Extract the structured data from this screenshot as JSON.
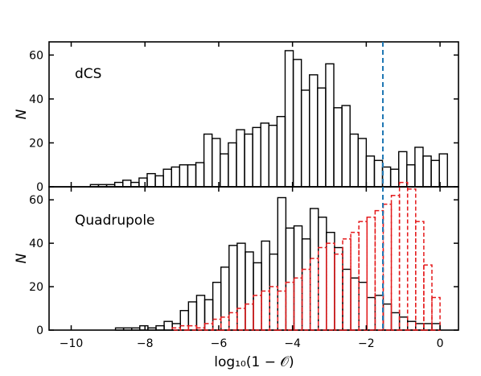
{
  "chart_data": [
    {
      "type": "bar",
      "panel": "top",
      "label": "dCS",
      "ylabel": "N",
      "xlim": [
        -10.6,
        0.5
      ],
      "ylim": [
        0,
        66
      ],
      "yticks": [
        0,
        20,
        40,
        60
      ],
      "xticks": [
        -10,
        -8,
        -6,
        -4,
        -2,
        0
      ],
      "bin_width": 0.22,
      "vline_x": -1.55,
      "vline_color": "#1f77b4",
      "series": [
        {
          "style": "solid-black",
          "color": "#000000",
          "x": [
            -9.48,
            -9.26,
            -9.04,
            -8.82,
            -8.6,
            -8.38,
            -8.16,
            -7.94,
            -7.72,
            -7.5,
            -7.28,
            -7.06,
            -6.84,
            -6.62,
            -6.4,
            -6.18,
            -5.96,
            -5.74,
            -5.52,
            -5.3,
            -5.08,
            -4.86,
            -4.64,
            -4.42,
            -4.2,
            -3.98,
            -3.76,
            -3.54,
            -3.32,
            -3.1,
            -2.88,
            -2.66,
            -2.44,
            -2.22,
            -2.0,
            -1.78,
            -1.56,
            -1.34,
            -1.12,
            -0.9,
            -0.68,
            -0.46,
            -0.24,
            -0.02
          ],
          "values": [
            1,
            1,
            1,
            2,
            3,
            2,
            4,
            6,
            5,
            8,
            9,
            10,
            10,
            11,
            24,
            22,
            15,
            20,
            26,
            24,
            27,
            29,
            28,
            32,
            62,
            58,
            44,
            51,
            45,
            56,
            36,
            37,
            24,
            22,
            14,
            12,
            9,
            8,
            16,
            10,
            18,
            14,
            12,
            15
          ]
        }
      ]
    },
    {
      "type": "bar",
      "panel": "bottom",
      "label": "Quadrupole",
      "ylabel": "N",
      "xlabel": "log₁₀(1 − 𝒪)",
      "xlim": [
        -10.6,
        0.5
      ],
      "ylim": [
        0,
        66
      ],
      "yticks": [
        0,
        20,
        40,
        60
      ],
      "xticks": [
        -10,
        -8,
        -6,
        -4,
        -2,
        0
      ],
      "xtick_labels": [
        "−10",
        "−8",
        "−6",
        "−4",
        "−2",
        "0"
      ],
      "bin_width": 0.22,
      "vline_x": -1.55,
      "vline_color": "#1f77b4",
      "series": [
        {
          "style": "solid-black",
          "color": "#000000",
          "x": [
            -8.8,
            -8.58,
            -8.36,
            -8.14,
            -7.92,
            -7.7,
            -7.48,
            -7.26,
            -7.04,
            -6.82,
            -6.6,
            -6.38,
            -6.16,
            -5.94,
            -5.72,
            -5.5,
            -5.28,
            -5.06,
            -4.84,
            -4.62,
            -4.4,
            -4.18,
            -3.96,
            -3.74,
            -3.52,
            -3.3,
            -3.08,
            -2.86,
            -2.64,
            -2.42,
            -2.2,
            -1.98,
            -1.76,
            -1.54,
            -1.32,
            -1.1,
            -0.88,
            -0.66,
            -0.44,
            -0.22
          ],
          "values": [
            1,
            1,
            1,
            2,
            1,
            2,
            4,
            3,
            9,
            13,
            16,
            14,
            22,
            29,
            39,
            40,
            36,
            31,
            41,
            35,
            61,
            47,
            48,
            42,
            56,
            52,
            45,
            38,
            28,
            24,
            22,
            15,
            16,
            12,
            8,
            6,
            4,
            3,
            3,
            3
          ]
        },
        {
          "style": "dashed-red",
          "color": "#e41a1c",
          "x": [
            -7.26,
            -7.04,
            -6.82,
            -6.6,
            -6.38,
            -6.16,
            -5.94,
            -5.72,
            -5.5,
            -5.28,
            -5.06,
            -4.84,
            -4.62,
            -4.4,
            -4.18,
            -3.96,
            -3.74,
            -3.52,
            -3.3,
            -3.08,
            -2.86,
            -2.64,
            -2.42,
            -2.2,
            -1.98,
            -1.76,
            -1.54,
            -1.32,
            -1.1,
            -0.88,
            -0.66,
            -0.44,
            -0.22
          ],
          "values": [
            1,
            2,
            2,
            1,
            3,
            5,
            6,
            8,
            10,
            12,
            16,
            18,
            20,
            18,
            22,
            24,
            28,
            33,
            38,
            40,
            35,
            42,
            45,
            50,
            52,
            55,
            58,
            62,
            68,
            65,
            50,
            30,
            15
          ]
        }
      ]
    }
  ]
}
